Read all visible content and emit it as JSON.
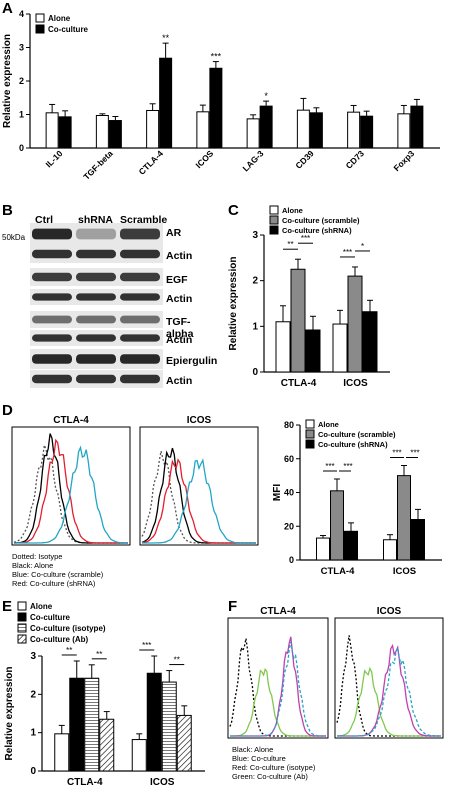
{
  "panels": {
    "A": {
      "label": "A",
      "chart_data": {
        "type": "bar",
        "ylabel": "Relative expression",
        "ylim": [
          0,
          4
        ],
        "yticks": [
          "0",
          "1",
          "2",
          "3",
          "4"
        ],
        "categories": [
          "IL-10",
          "TGF-beta",
          "CTLA-4",
          "ICOS",
          "LAG-3",
          "CD39",
          "CD73",
          "Foxp3"
        ],
        "series": [
          {
            "name": "Alone",
            "values": [
              1.05,
              0.97,
              1.12,
              1.08,
              0.87,
              1.13,
              1.07,
              1.02
            ],
            "errors": [
              0.25,
              0.05,
              0.2,
              0.2,
              0.12,
              0.35,
              0.2,
              0.25
            ]
          },
          {
            "name": "Co-culture",
            "values": [
              0.93,
              0.82,
              2.68,
              2.38,
              1.25,
              1.05,
              0.95,
              1.25
            ],
            "errors": [
              0.18,
              0.12,
              0.45,
              0.2,
              0.15,
              0.15,
              0.15,
              0.2
            ]
          }
        ],
        "significance": [
          "",
          "",
          "**",
          "***",
          "*",
          "",
          "",
          ""
        ],
        "colors": {
          "alone": "#ffffff",
          "coculture": "#000000"
        }
      }
    },
    "B": {
      "label": "B",
      "marker": "50kDa",
      "columns": [
        "Ctrl",
        "shRNA",
        "Scramble"
      ],
      "rows": [
        "AR",
        "Actin",
        "EGF",
        "Actin",
        "TGF-alpha",
        "Actin",
        "Epiergulin",
        "Actin"
      ]
    },
    "C": {
      "label": "C",
      "chart_data": {
        "type": "bar",
        "ylabel": "Relative expression",
        "ylim": [
          0,
          3
        ],
        "yticks": [
          "0",
          "1",
          "2",
          "3"
        ],
        "categories": [
          "CTLA-4",
          "ICOS"
        ],
        "series": [
          {
            "name": "Alone",
            "values": [
              1.1,
              1.05
            ],
            "errors": [
              0.35,
              0.3
            ]
          },
          {
            "name": "Co-culture (scramble)",
            "values": [
              2.25,
              2.1
            ],
            "errors": [
              0.22,
              0.2
            ]
          },
          {
            "name": "Co-culture (shRNA)",
            "values": [
              0.92,
              1.32
            ],
            "errors": [
              0.3,
              0.25
            ]
          }
        ],
        "significance": [
          [
            "**",
            "***"
          ],
          [
            "***",
            "*"
          ]
        ],
        "colors": {
          "alone": "#ffffff",
          "scramble": "#8a8a8a",
          "shrna": "#000000"
        }
      }
    },
    "D": {
      "label": "D",
      "hist_titles": [
        "CTLA-4",
        "ICOS"
      ],
      "hist_legend": [
        "Dotted: Isotype",
        "Black: Alone",
        "Blue: Co-culture (scramble)",
        "Red: Co-culture (shRNA)"
      ],
      "chart_data": {
        "type": "bar",
        "ylabel": "MFI",
        "ylim": [
          0,
          80
        ],
        "yticks": [
          "0",
          "20",
          "40",
          "60",
          "80"
        ],
        "categories": [
          "CTLA-4",
          "ICOS"
        ],
        "series": [
          {
            "name": "Alone",
            "values": [
              13,
              12
            ],
            "errors": [
              1.5,
              3
            ]
          },
          {
            "name": "Co-culture (scramble)",
            "values": [
              41,
              50
            ],
            "errors": [
              7,
              6
            ]
          },
          {
            "name": "Co-culture (shRNA)",
            "values": [
              17,
              24
            ],
            "errors": [
              5,
              6
            ]
          }
        ],
        "significance": [
          [
            "***",
            "***"
          ],
          [
            "***",
            "***"
          ]
        ]
      }
    },
    "E": {
      "label": "E",
      "chart_data": {
        "type": "bar",
        "ylabel": "Relative expression",
        "ylim": [
          0,
          3
        ],
        "yticks": [
          "0",
          "1",
          "2",
          "3"
        ],
        "categories": [
          "CTLA-4",
          "ICOS"
        ],
        "series": [
          {
            "name": "Alone",
            "values": [
              0.97,
              0.82
            ],
            "errors": [
              0.22,
              0.15
            ]
          },
          {
            "name": "Co-culture",
            "values": [
              2.42,
              2.55
            ],
            "errors": [
              0.45,
              0.45
            ]
          },
          {
            "name": "Co-culture (isotype)",
            "values": [
              2.42,
              2.32
            ],
            "errors": [
              0.35,
              0.3
            ]
          },
          {
            "name": "Co-culture (Ab)",
            "values": [
              1.35,
              1.45
            ],
            "errors": [
              0.2,
              0.25
            ]
          }
        ],
        "significance": [
          [
            "**",
            "**"
          ],
          [
            "***",
            "**"
          ]
        ]
      }
    },
    "F": {
      "label": "F",
      "hist_titles": [
        "CTLA-4",
        "ICOS"
      ],
      "hist_legend": [
        "Black: Alone",
        "Blue: Co-culture",
        "Red: Co-culture (isotype)",
        "Green: Co-culture (Ab)"
      ]
    }
  },
  "colors": {
    "blue_trace": "#22a6c6",
    "red_trace": "#e02030",
    "green_trace": "#80c850",
    "magenta_trace": "#c040b0",
    "gray_bar": "#8a8a8a"
  }
}
